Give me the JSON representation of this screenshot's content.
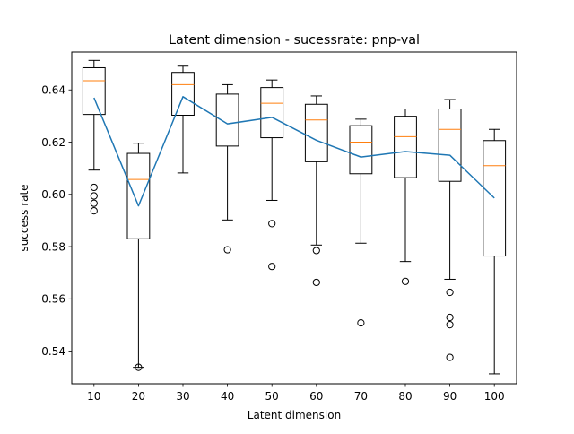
{
  "chart_data": {
    "type": "box",
    "title": "Latent dimension - sucessrate: pnp-val",
    "xlabel": "Latent dimension",
    "ylabel": "success rate",
    "categories": [
      "10",
      "20",
      "30",
      "40",
      "50",
      "60",
      "70",
      "80",
      "90",
      "100"
    ],
    "ylim": [
      0.5275,
      0.6545
    ],
    "yticks": [
      0.54,
      0.56,
      0.58,
      0.6,
      0.62,
      0.64
    ],
    "ytick_labels": [
      "0.54",
      "0.56",
      "0.58",
      "0.60",
      "0.62",
      "0.64"
    ],
    "grid": false,
    "boxes": [
      {
        "category": "10",
        "whislo": 0.6093,
        "q1": 0.6306,
        "med": 0.6435,
        "q3": 0.6485,
        "whishi": 0.6513,
        "fliers": [
          0.6027,
          0.5994,
          0.5966,
          0.5937
        ]
      },
      {
        "category": "20",
        "whislo": 0.5338,
        "q1": 0.583,
        "med": 0.6057,
        "q3": 0.6157,
        "whishi": 0.6196,
        "fliers": [
          0.5338
        ]
      },
      {
        "category": "30",
        "whislo": 0.6082,
        "q1": 0.6303,
        "med": 0.642,
        "q3": 0.6467,
        "whishi": 0.6491,
        "fliers": []
      },
      {
        "category": "40",
        "whislo": 0.5902,
        "q1": 0.6185,
        "med": 0.6327,
        "q3": 0.6384,
        "whishi": 0.642,
        "fliers": [
          0.5788
        ]
      },
      {
        "category": "50",
        "whislo": 0.5977,
        "q1": 0.6217,
        "med": 0.6349,
        "q3": 0.6409,
        "whishi": 0.6438,
        "fliers": [
          0.5888,
          0.5724
        ]
      },
      {
        "category": "60",
        "whislo": 0.5806,
        "q1": 0.6125,
        "med": 0.6285,
        "q3": 0.6345,
        "whishi": 0.6377,
        "fliers": [
          0.5785,
          0.5663
        ]
      },
      {
        "category": "70",
        "whislo": 0.5813,
        "q1": 0.6079,
        "med": 0.62,
        "q3": 0.6263,
        "whishi": 0.6288,
        "fliers": [
          0.5508
        ]
      },
      {
        "category": "80",
        "whislo": 0.5743,
        "q1": 0.6064,
        "med": 0.6221,
        "q3": 0.6299,
        "whishi": 0.6327,
        "fliers": [
          0.5667
        ]
      },
      {
        "category": "90",
        "whislo": 0.5675,
        "q1": 0.605,
        "med": 0.6249,
        "q3": 0.6327,
        "whishi": 0.6363,
        "fliers": [
          0.5625,
          0.5529,
          0.5501,
          0.5376
        ]
      },
      {
        "category": "100",
        "whislo": 0.5313,
        "q1": 0.5764,
        "med": 0.611,
        "q3": 0.6206,
        "whishi": 0.6249,
        "fliers": []
      }
    ],
    "series": [
      {
        "type": "line",
        "values": [
          0.637,
          0.5956,
          0.6374,
          0.627,
          0.6295,
          0.6207,
          0.6143,
          0.6164,
          0.615,
          0.5986
        ]
      }
    ],
    "colors": {
      "box": "#000000",
      "median": "#ff7f0e",
      "mean_line": "#1f77b4",
      "flier": "#000000"
    }
  }
}
